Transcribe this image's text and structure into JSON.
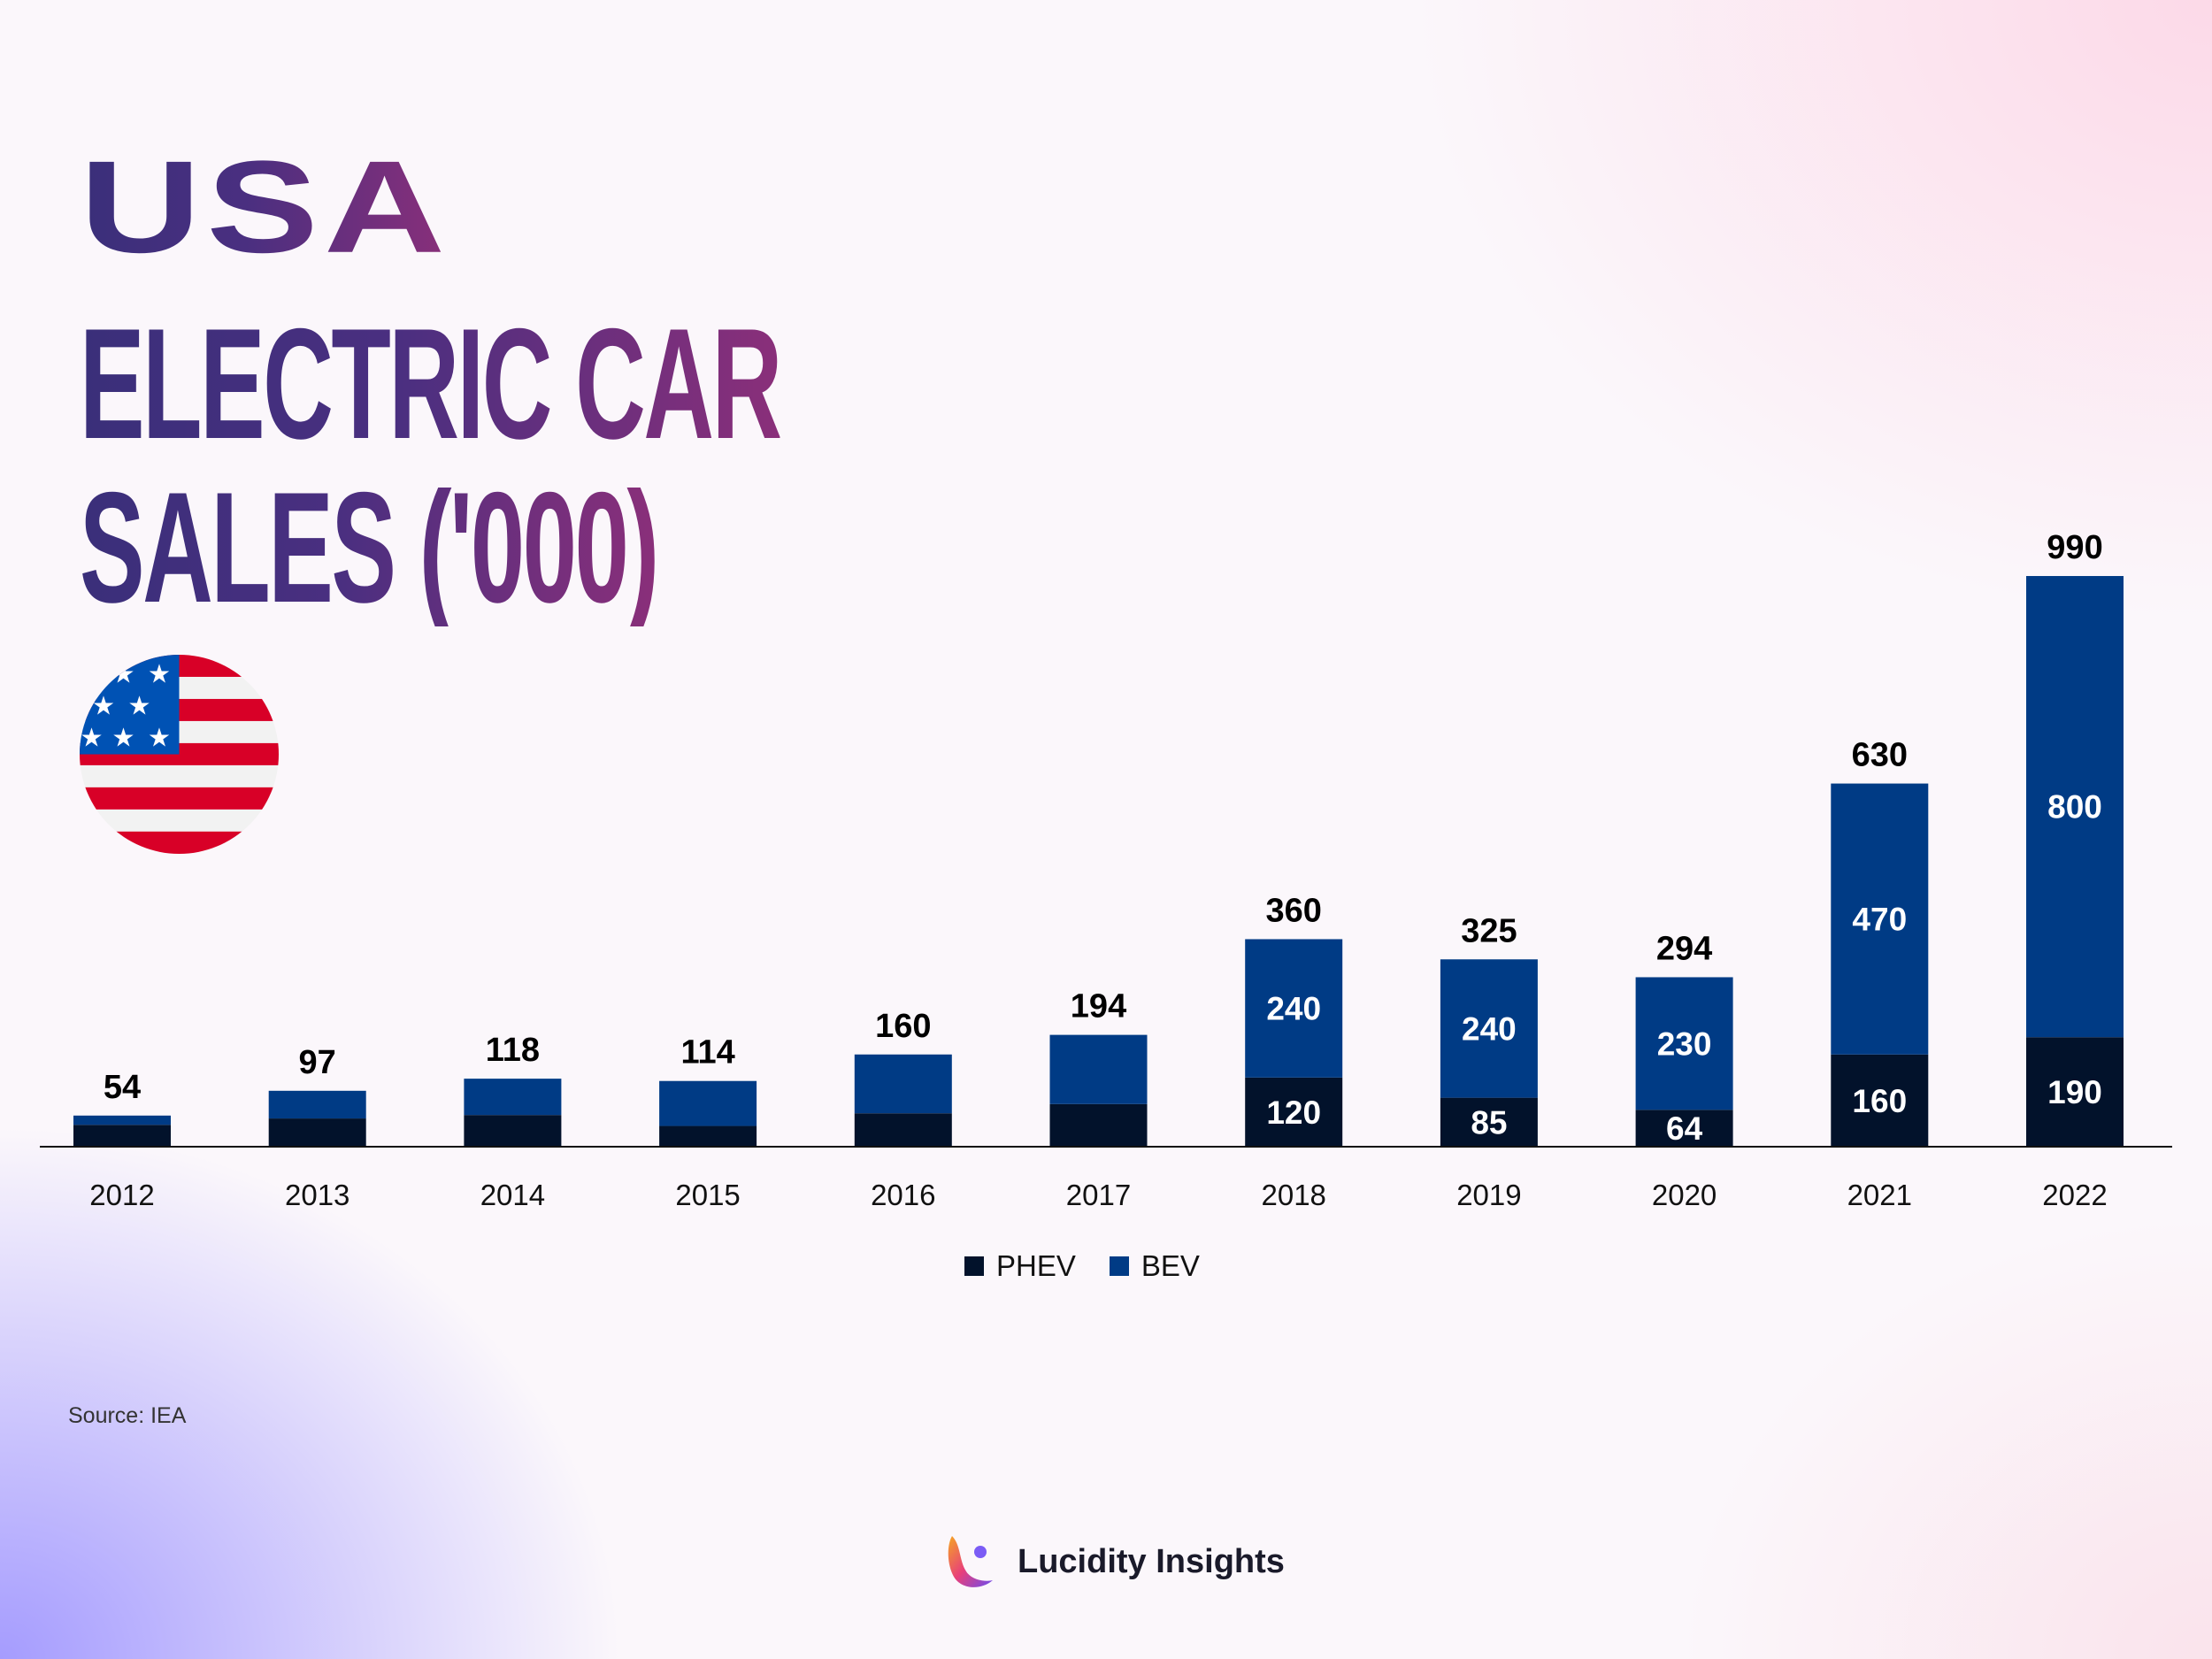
{
  "title": {
    "line1": "USA",
    "line2": "ELECTRIC CAR",
    "line3": "SALES ('000)"
  },
  "flag_icon": "usa-flag-icon",
  "chart_data": {
    "type": "bar",
    "stacked": true,
    "categories": [
      "2012",
      "2013",
      "2014",
      "2015",
      "2016",
      "2017",
      "2018",
      "2019",
      "2020",
      "2021",
      "2022"
    ],
    "series": [
      {
        "name": "PHEV",
        "color": "#02122b",
        "values": [
          38,
          49,
          55,
          36,
          58,
          74,
          120,
          85,
          64,
          160,
          190
        ]
      },
      {
        "name": "BEV",
        "color": "#003b85",
        "values": [
          16,
          48,
          63,
          78,
          102,
          120,
          240,
          240,
          230,
          470,
          800
        ]
      }
    ],
    "totals": [
      54,
      97,
      118,
      114,
      160,
      194,
      360,
      325,
      294,
      630,
      990
    ],
    "segment_labels": {
      "PHEV": [
        "",
        "",
        "",
        "",
        "",
        "",
        "120",
        "85",
        "64",
        "160",
        "190"
      ],
      "BEV": [
        "",
        "",
        "",
        "",
        "",
        "",
        "240",
        "240",
        "230",
        "470",
        "800"
      ]
    },
    "ylim": [
      0,
      1050
    ],
    "grid": false,
    "legend_position": "bottom"
  },
  "legend": {
    "items": [
      {
        "label": "PHEV",
        "color": "#02122b"
      },
      {
        "label": "BEV",
        "color": "#003b85"
      }
    ]
  },
  "source": "Source: IEA",
  "brand": {
    "name": "Lucidity Insights",
    "logo_icon": "lucidity-logo-icon"
  }
}
